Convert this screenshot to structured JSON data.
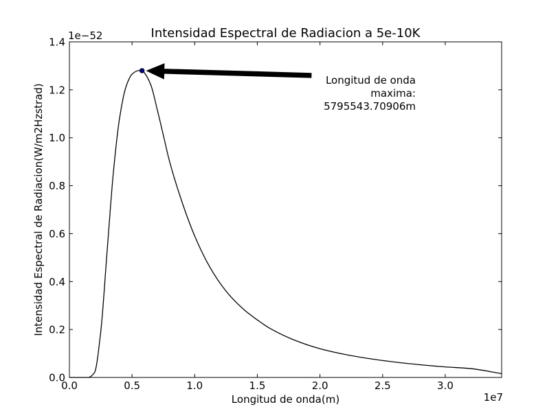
{
  "chart_data": {
    "type": "line",
    "title": "Intensidad Espectral de Radiacion a 5e-10K",
    "xlabel": "Longitud de onda(m)",
    "ylabel": "Intensidad Espectral de Radiacion(W/m2Hzstrad)",
    "x_scale_label": "1e7",
    "y_scale_label": "1e−52",
    "xlim": [
      0,
      34500000
    ],
    "ylim": [
      0,
      1.4e-52
    ],
    "x_ticks": [
      0,
      5000000,
      10000000,
      15000000,
      20000000,
      25000000,
      30000000
    ],
    "x_tick_labels": [
      "0.0",
      "0.5",
      "1.0",
      "1.5",
      "2.0",
      "2.5",
      "3.0"
    ],
    "y_ticks": [
      0,
      2e-53,
      4e-53,
      6e-53,
      8e-53,
      1e-52,
      1.2e-52,
      1.4e-52
    ],
    "y_tick_labels": [
      "0.0",
      "0.2",
      "0.4",
      "0.6",
      "0.8",
      "1.0",
      "1.2",
      "1.4"
    ],
    "grid": false,
    "line_color": "#000000",
    "series": [
      {
        "x": [
          0,
          1000000,
          1500000,
          2000000,
          2500000,
          3000000,
          3500000,
          4000000,
          4500000,
          5000000,
          5500000,
          5795543.70906,
          6000000,
          6500000,
          7000000,
          7500000,
          8000000,
          9000000,
          10000000,
          11000000,
          12000000,
          13000000,
          14000000,
          15000000,
          16000000,
          18000000,
          20000000,
          22000000,
          24000000,
          26000000,
          28000000,
          30000000,
          32000000,
          34500000
        ],
        "y": [
          0,
          0,
          1e-56,
          2e-54,
          1.9e-53,
          5.2e-53,
          8.5e-53,
          1.08e-52,
          1.21e-52,
          1.265e-52,
          1.28e-52,
          1.28e-52,
          1.27e-52,
          1.22e-52,
          1.12e-52,
          1.01e-52,
          9e-53,
          7.3e-53,
          5.9e-53,
          4.8e-53,
          3.95e-53,
          3.3e-53,
          2.8e-53,
          2.4e-53,
          2.05e-53,
          1.55e-53,
          1.2e-53,
          9.6e-54,
          7.8e-54,
          6.4e-54,
          5.3e-54,
          4.4e-54,
          3.7e-54,
          1.6e-54
        ]
      }
    ],
    "peak": {
      "x": 5795543.70906,
      "y": 1.28e-52,
      "marker_color": "#00008b"
    },
    "annotation": {
      "lines": [
        "Longitud de onda",
        "maxima:",
        "5795543.70906m"
      ],
      "arrow_tail": {
        "x": 19300000,
        "y": 1.26e-52
      }
    }
  }
}
